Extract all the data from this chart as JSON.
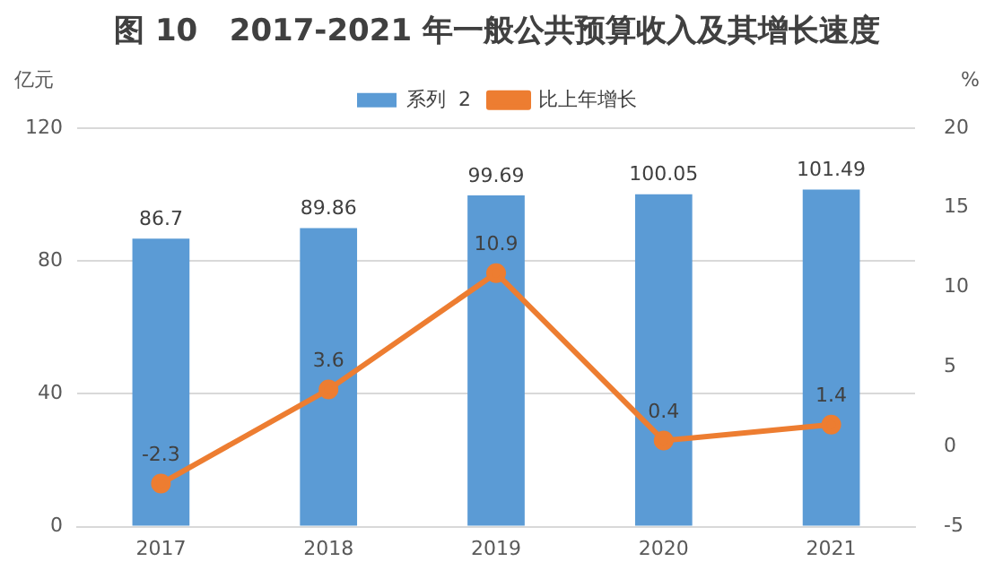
{
  "chart_data": {
    "type": "bar",
    "title": "图 10   2017-2021 年一般公共预算收入及其增长速度",
    "categories": [
      "2017",
      "2018",
      "2019",
      "2020",
      "2021"
    ],
    "series": [
      {
        "name": "系列  2",
        "color": "#5b9bd5",
        "values": [
          86.7,
          89.86,
          99.69,
          100.05,
          101.49
        ]
      },
      {
        "name": "比上年增长",
        "type": "line",
        "axis": "y2",
        "color": "#ed7d31",
        "values": [
          -2.3,
          3.6,
          10.9,
          0.4,
          1.4
        ]
      }
    ],
    "ylabel": "亿元",
    "y2label": "%",
    "ylim": [
      0,
      120
    ],
    "yticks": [
      0,
      40,
      80,
      120
    ],
    "y2lim": [
      -5,
      20
    ],
    "y2ticks": [
      -5,
      0,
      5,
      10,
      15,
      20
    ],
    "grid": "y",
    "legend": "top",
    "marker": "circle",
    "data_labels": true
  }
}
